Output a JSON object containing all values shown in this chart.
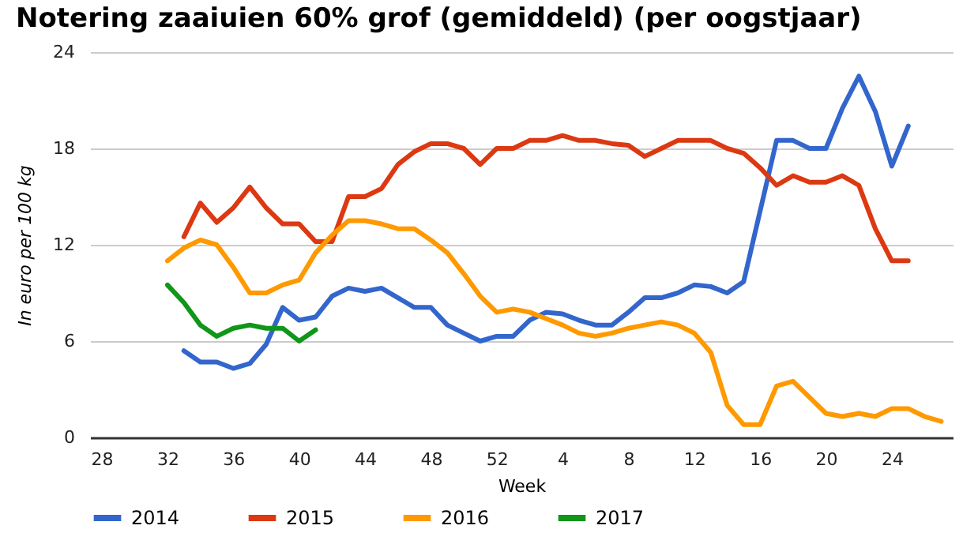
{
  "chart_data": {
    "type": "line",
    "title": "Notering zaaiuien 60% grof (gemiddeld) (per oogstjaar)",
    "xlabel": "Week",
    "ylabel": "In euro per 100 kg",
    "categories": [
      "28",
      null,
      null,
      null,
      "32",
      null,
      null,
      null,
      "36",
      null,
      null,
      null,
      "40",
      null,
      null,
      null,
      "44",
      null,
      null,
      null,
      "48",
      null,
      null,
      null,
      "52",
      null,
      null,
      null,
      "4",
      null,
      null,
      null,
      "8",
      null,
      null,
      null,
      "12",
      null,
      null,
      null,
      "16",
      null,
      null,
      null,
      "20",
      null,
      null,
      null,
      "24",
      null,
      null,
      null
    ],
    "series": [
      {
        "name": "2014",
        "color": "#3366cc",
        "values": [
          null,
          null,
          null,
          null,
          null,
          5.4,
          4.7,
          4.7,
          4.3,
          4.6,
          5.8,
          8.1,
          7.3,
          7.5,
          8.8,
          9.3,
          9.1,
          9.3,
          8.7,
          8.1,
          8.1,
          7.0,
          6.5,
          6.0,
          6.3,
          6.3,
          7.3,
          7.8,
          7.7,
          7.3,
          7.0,
          7.0,
          7.8,
          8.7,
          8.7,
          9.0,
          9.5,
          9.4,
          9.0,
          9.7,
          14.1,
          18.5,
          18.5,
          18.0,
          18.0,
          20.5,
          22.5,
          20.3,
          16.9,
          19.4,
          null,
          null
        ]
      },
      {
        "name": "2015",
        "color": "#dc3912",
        "values": [
          null,
          null,
          null,
          null,
          null,
          12.5,
          14.6,
          13.4,
          14.3,
          15.6,
          14.3,
          13.3,
          13.3,
          12.2,
          12.2,
          15.0,
          15.0,
          15.5,
          17.0,
          17.8,
          18.3,
          18.3,
          18.0,
          17.0,
          18.0,
          18.0,
          18.5,
          18.5,
          18.8,
          18.5,
          18.5,
          18.3,
          18.2,
          17.5,
          18.0,
          18.5,
          18.5,
          18.5,
          18.0,
          17.7,
          16.8,
          15.7,
          16.3,
          15.9,
          15.9,
          16.3,
          15.7,
          13.0,
          11.0,
          11.0,
          null,
          null
        ]
      },
      {
        "name": "2016",
        "color": "#ff9900",
        "values": [
          null,
          null,
          null,
          null,
          11.0,
          11.8,
          12.3,
          12.0,
          10.6,
          9.0,
          9.0,
          9.5,
          9.8,
          11.5,
          12.6,
          13.5,
          13.5,
          13.3,
          13.0,
          13.0,
          12.3,
          11.5,
          10.2,
          8.8,
          7.8,
          8.0,
          7.8,
          7.4,
          7.0,
          6.5,
          6.3,
          6.5,
          6.8,
          7.0,
          7.2,
          7.0,
          6.5,
          5.3,
          2.0,
          0.8,
          0.8,
          3.2,
          3.5,
          2.5,
          1.5,
          1.3,
          1.5,
          1.3,
          1.8,
          1.8,
          1.3,
          1.0
        ]
      },
      {
        "name": "2017",
        "color": "#109618",
        "values": [
          null,
          null,
          null,
          null,
          9.5,
          8.4,
          7.0,
          6.3,
          6.8,
          7.0,
          6.8,
          6.8,
          6.0,
          6.7,
          null,
          null,
          null,
          null,
          null,
          null,
          null,
          null,
          null,
          null,
          null,
          null,
          null,
          null,
          null,
          null,
          null,
          null,
          null,
          null,
          null,
          null,
          null,
          null,
          null,
          null,
          null,
          null,
          null,
          null,
          null,
          null,
          null,
          null,
          null,
          null,
          null,
          null
        ]
      }
    ],
    "ylim": [
      0,
      24
    ],
    "yticks": [
      0,
      6,
      12,
      18,
      24
    ],
    "grid": "y",
    "legend": "bottom",
    "line_style": "solid"
  }
}
